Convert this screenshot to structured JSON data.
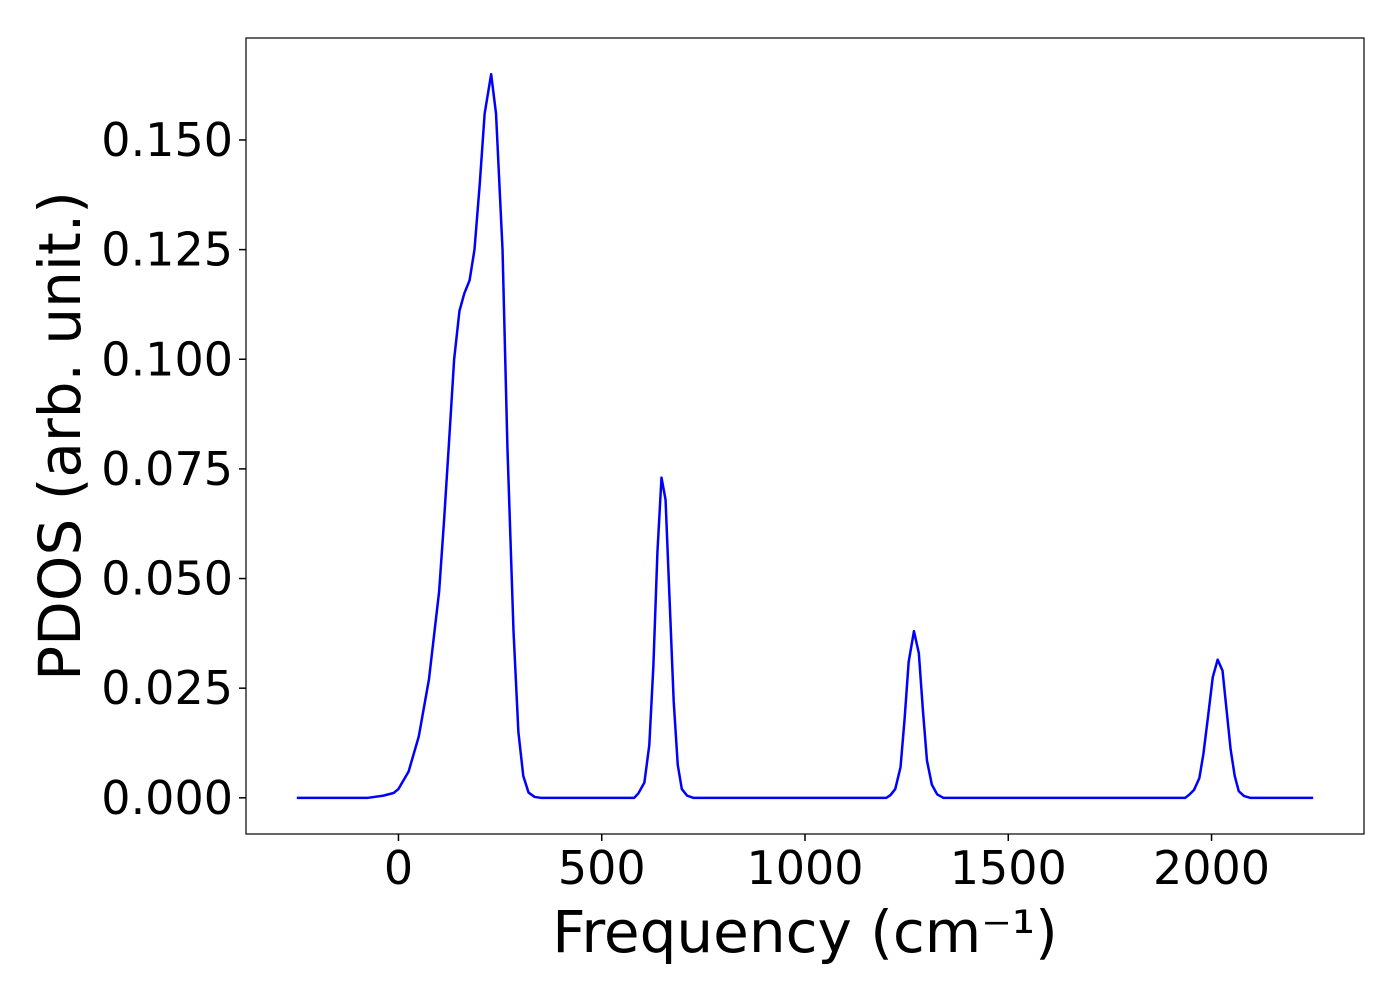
{
  "chart_data": {
    "type": "line",
    "xlabel": "Frequency (cm⁻¹)",
    "ylabel": "PDOS (arb. unit.)",
    "xlim": [
      -375,
      2375
    ],
    "ylim": [
      -0.00825,
      0.17325
    ],
    "xticks": [
      0,
      500,
      1000,
      1500,
      2000
    ],
    "yticks": [
      {
        "value": 0,
        "label": "0.000"
      },
      {
        "value": 0.025,
        "label": "0.025"
      },
      {
        "value": 0.05,
        "label": "0.050"
      },
      {
        "value": 0.075,
        "label": "0.075"
      },
      {
        "value": 0.1,
        "label": "0.100"
      },
      {
        "value": 0.125,
        "label": "0.125"
      },
      {
        "value": 0.15,
        "label": "0.150"
      }
    ],
    "grid": false,
    "x": [
      -250,
      -75,
      -37,
      -12,
      0,
      25,
      50,
      75,
      100,
      112,
      125,
      137,
      150,
      162,
      175,
      187,
      200,
      212,
      228,
      240,
      256,
      268,
      283,
      295,
      307,
      320,
      335,
      350,
      580,
      590,
      605,
      617,
      627,
      637,
      647,
      657,
      667,
      677,
      687,
      697,
      710,
      725,
      1200,
      1210,
      1222,
      1235,
      1245,
      1255,
      1268,
      1280,
      1290,
      1300,
      1312,
      1325,
      1340,
      1935,
      1945,
      1957,
      1970,
      1980,
      1992,
      2003,
      2015,
      2027,
      2037,
      2047,
      2057,
      2067,
      2080,
      2095,
      2250
    ],
    "series": [
      {
        "color": "#0000ff",
        "values": [
          0,
          0,
          0.0005,
          0.0011,
          0.002,
          0.006,
          0.014,
          0.027,
          0.047,
          0.063,
          0.082,
          0.1,
          0.111,
          0.115,
          0.118,
          0.125,
          0.14,
          0.156,
          0.165,
          0.156,
          0.125,
          0.08,
          0.038,
          0.015,
          0.005,
          0.0012,
          0.0002,
          0,
          0,
          0.001,
          0.0035,
          0.012,
          0.03,
          0.056,
          0.073,
          0.068,
          0.045,
          0.022,
          0.0075,
          0.002,
          0.0005,
          0,
          0,
          0.0006,
          0.002,
          0.007,
          0.018,
          0.031,
          0.038,
          0.033,
          0.02,
          0.0085,
          0.003,
          0.0008,
          0,
          0,
          0.0007,
          0.0018,
          0.0045,
          0.01,
          0.019,
          0.0275,
          0.0315,
          0.029,
          0.02,
          0.011,
          0.005,
          0.0015,
          0.0004,
          0,
          0
        ]
      }
    ]
  }
}
